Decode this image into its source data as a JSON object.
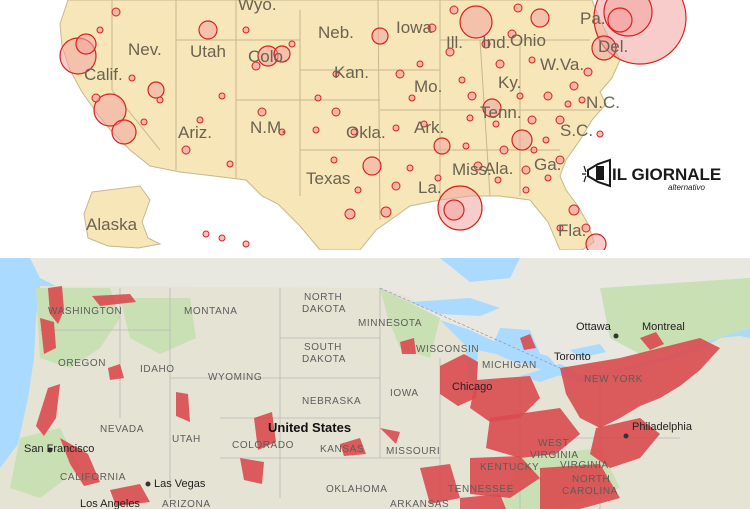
{
  "top_map": {
    "state_labels": [
      "Wyo.",
      "Neb.",
      "Iowa",
      "Pa.",
      "Nev.",
      "Utah",
      "Colo.",
      "Ill.",
      "Ind.",
      "Ohio",
      "Del.",
      "Calif.",
      "Kan.",
      "W.Va.",
      "Mo.",
      "Ky.",
      "N.C.",
      "Tenn.",
      "Ariz.",
      "N.M.",
      "Okla.",
      "Ark.",
      "S.C.",
      "Texas",
      "Miss.",
      "Ala.",
      "Ga.",
      "La.",
      "Alaska",
      "Fla."
    ],
    "colors": {
      "land": "#f6e6b8",
      "water": "#ffffff",
      "border": "#c8b78f",
      "circle_fill": "#f2a3a0",
      "circle_stroke": "#d8231f"
    }
  },
  "logo": {
    "main": "IL GIORNALE",
    "sub": "alternativo",
    "icon": "megaphone-icon"
  },
  "bottom_map": {
    "labels": {
      "washington": "WASHINGTON",
      "montana": "MONTANA",
      "north_dakota_1": "NORTH",
      "north_dakota_2": "DAKOTA",
      "minnesota": "MINNESOTA",
      "ottawa": "Ottawa",
      "montreal": "Montreal",
      "south_dakota_1": "SOUTH",
      "south_dakota_2": "DAKOTA",
      "wisconsin": "WISCONSIN",
      "oregon": "OREGON",
      "idaho": "IDAHO",
      "michigan": "MICHIGAN",
      "toronto": "Toronto",
      "wyoming": "WYOMING",
      "new_york": "NEW YORK",
      "iowa": "IOWA",
      "chicago": "Chicago",
      "nebraska": "NEBRASKA",
      "nevada": "NEVADA",
      "united_states": "United States",
      "utah": "UTAH",
      "colorado": "COLORADO",
      "kansas": "KANSAS",
      "missouri": "MISSOURI",
      "west_virginia_1": "WEST",
      "west_virginia_2": "VIRGINIA",
      "virginia": "VIRGINIA",
      "philadelphia": "Philadelphia",
      "san_francisco": "San Francisco",
      "california": "CALIFORNIA",
      "las_vegas": "Las Vegas",
      "kentucky": "KENTUCKY",
      "oklahoma": "OKLAHOMA",
      "tennessee": "TENNESSEE",
      "north_carolina_1": "NORTH",
      "north_carolina_2": "CAROLINA",
      "los_angeles": "Los Angeles",
      "arizona": "ARIZONA",
      "arkansas": "ARKANSAS"
    },
    "colors": {
      "water": "#aadaff",
      "canada": "#e8e8e0",
      "us_land": "#e5e3d4",
      "forest": "#c9dfb4",
      "highlight": "#d94a4e"
    }
  }
}
